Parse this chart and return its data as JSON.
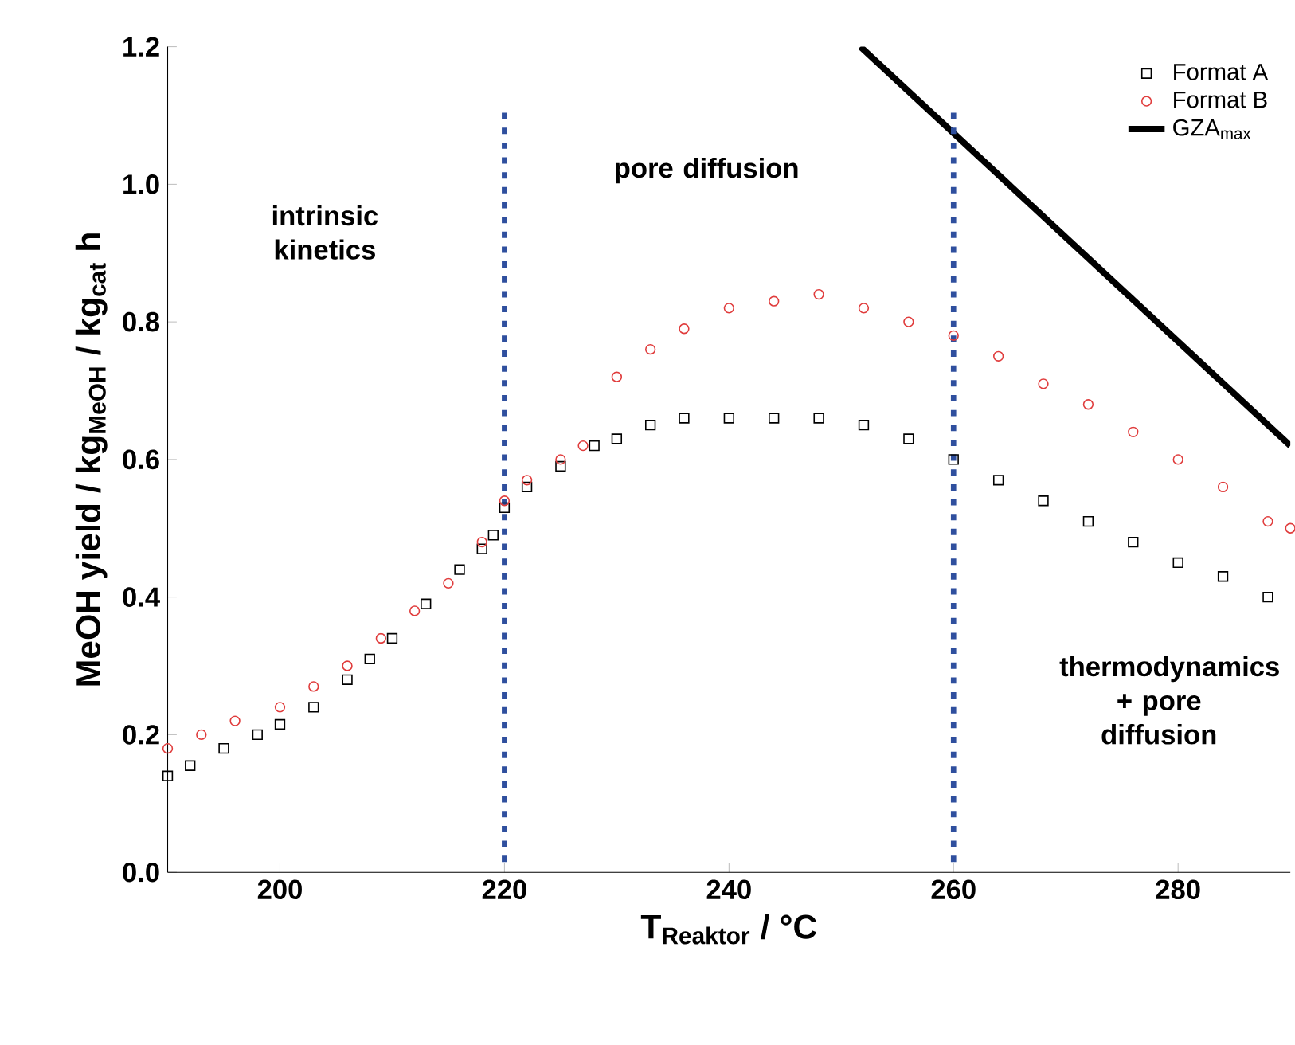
{
  "chart_data": {
    "type": "scatter",
    "xlabel": "T$_{Reaktor}$ / °C",
    "ylabel": "MeOH yield / kg$_{MeOH}$ / kg$_{cat}$ h",
    "xlim": [
      190,
      290
    ],
    "xticks": [
      200,
      220,
      240,
      260,
      280
    ],
    "ylim": [
      0,
      1.2
    ],
    "yticks": [
      {
        "value": 0,
        "label": "0.0"
      },
      {
        "value": 0.2,
        "label": "0.2"
      },
      {
        "value": 0.4,
        "label": "0.4"
      },
      {
        "value": 0.6,
        "label": "0.6"
      },
      {
        "value": 0.8,
        "label": "0.8"
      },
      {
        "value": 1.0,
        "label": "1.0"
      },
      {
        "value": 1.2,
        "label": "1.2"
      }
    ],
    "legend": "top right",
    "series": [
      {
        "name": "Format A",
        "color": "#000000",
        "marker": "square",
        "x": [
          190,
          192,
          195,
          198,
          200,
          203,
          206,
          208,
          210,
          213,
          216,
          218,
          219,
          220,
          222,
          225,
          228,
          230,
          233,
          236,
          240,
          244,
          248,
          252,
          256,
          260,
          264,
          268,
          272,
          276,
          280,
          284,
          288
        ],
        "values": [
          0.14,
          0.155,
          0.18,
          0.2,
          0.215,
          0.24,
          0.28,
          0.31,
          0.34,
          0.39,
          0.44,
          0.47,
          0.49,
          0.53,
          0.56,
          0.59,
          0.62,
          0.63,
          0.65,
          0.66,
          0.66,
          0.66,
          0.66,
          0.65,
          0.63,
          0.6,
          0.57,
          0.54,
          0.51,
          0.48,
          0.45,
          0.43,
          0.4
        ]
      },
      {
        "name": "Format B",
        "color": "#e03c3c",
        "marker": "circle",
        "x": [
          190,
          193,
          196,
          200,
          203,
          206,
          209,
          212,
          215,
          218,
          220,
          222,
          225,
          227,
          230,
          233,
          236,
          240,
          244,
          248,
          252,
          256,
          260,
          264,
          268,
          272,
          276,
          280,
          284,
          288,
          290
        ],
        "values": [
          0.18,
          0.2,
          0.22,
          0.24,
          0.27,
          0.3,
          0.34,
          0.38,
          0.42,
          0.48,
          0.54,
          0.57,
          0.6,
          0.62,
          0.72,
          0.76,
          0.79,
          0.82,
          0.83,
          0.84,
          0.82,
          0.8,
          0.78,
          0.75,
          0.71,
          0.68,
          0.64,
          0.6,
          0.56,
          0.51,
          0.5
        ]
      },
      {
        "name": "GZA$_{max}$",
        "type": "line",
        "color": "#000000",
        "marker": "none",
        "x": [
          251.7,
          290
        ],
        "values": [
          1.2,
          0.62
        ]
      }
    ],
    "ref_lines": [
      {
        "axis": "x",
        "value": 220,
        "color": "#2f4f9e",
        "line_style": "dotted"
      },
      {
        "axis": "x",
        "value": 260,
        "color": "#2f4f9e",
        "line_style": "dotted"
      }
    ],
    "annotations": [
      "intrinsic kinetics",
      "pore diffusion",
      "thermodynamics + pore diffusion"
    ]
  }
}
